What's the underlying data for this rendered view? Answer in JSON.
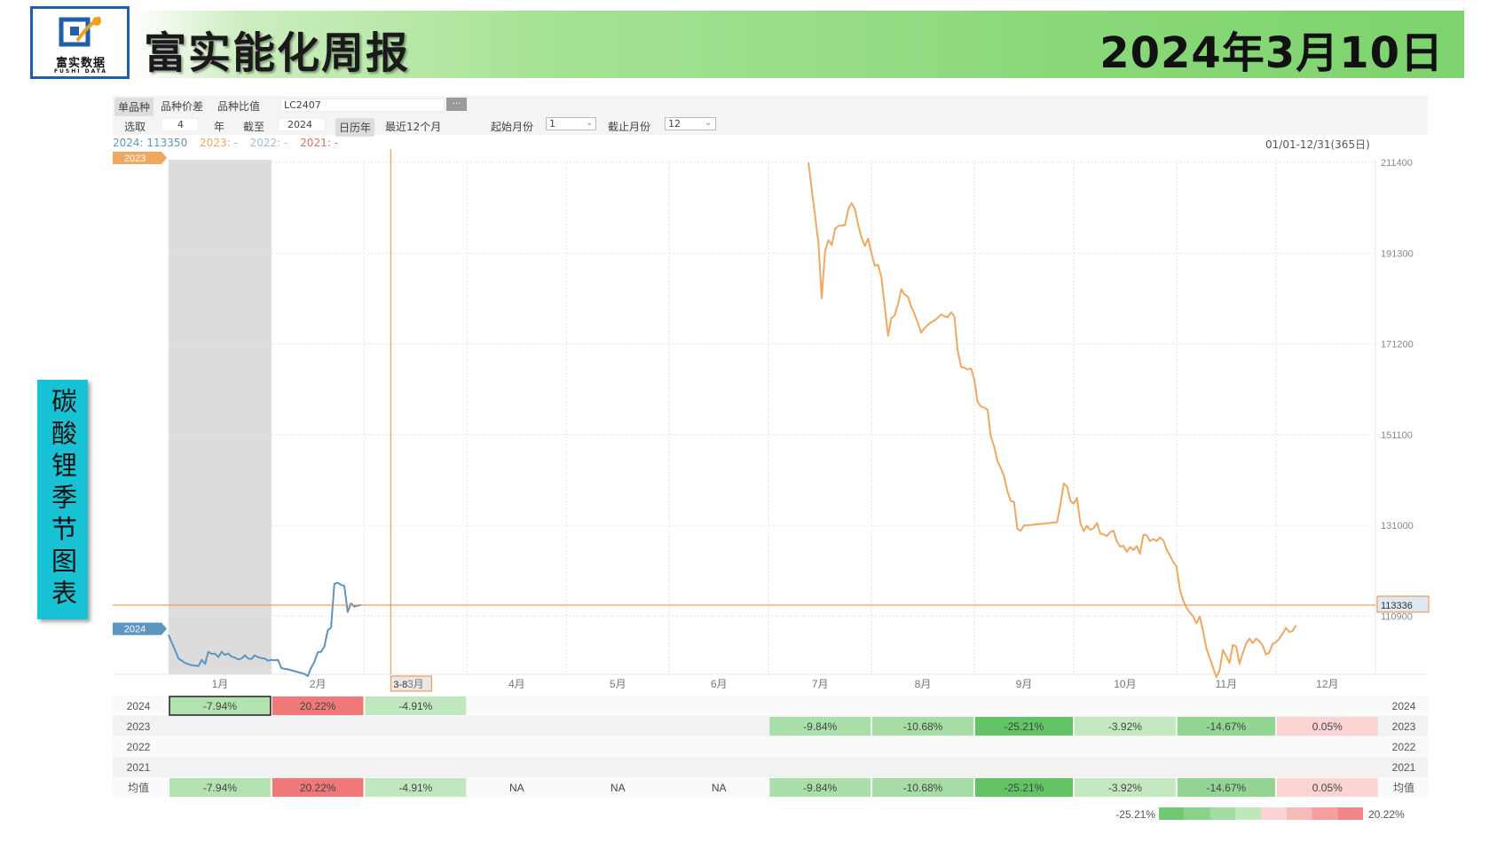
{
  "header": {
    "logo_text": "富实数据",
    "logo_sub": "FUSHI DATA",
    "title": "富实能化周报",
    "date": "2024年3月10日"
  },
  "side_label": "碳酸锂季节图表",
  "toolbar": {
    "tabs": [
      "单品种",
      "品种价差",
      "品种比值"
    ],
    "contract": "LC2407",
    "more_btn": "...",
    "select_label": "选取",
    "years_value": "4",
    "years_unit": "年",
    "until_label": "截至",
    "until_value": "2024",
    "mode_calendar": "日历年",
    "mode_recent": "最近12个月",
    "start_month_label": "起始月份",
    "start_month_value": "1",
    "end_month_label": "截止月份",
    "end_month_value": "12"
  },
  "legend_line": {
    "y2024": "2024: 113350",
    "y2023": "2023: -",
    "y2022": "2022: -",
    "y2021": "2021: -",
    "range": "01/01-12/31(365日)"
  },
  "colors": {
    "y2024": "#5b95c0",
    "y2023": "#f0a860",
    "y2022": "#9cc3de",
    "y2021": "#e46a6a",
    "crosshair": "#f08a3c",
    "shade": "#dcdcdc"
  },
  "chart_data": {
    "type": "line",
    "title": "",
    "x_unit": "day_of_year",
    "xlim": [
      1,
      365
    ],
    "ylim": [
      98000,
      212000
    ],
    "y_ticks": [
      "211400",
      "191300",
      "171200",
      "151100",
      "131000",
      "110900"
    ],
    "y_tick_values": [
      211400,
      191300,
      171200,
      151100,
      131000,
      110900
    ],
    "month_labels": [
      "1月",
      "2月",
      "3月",
      "4月",
      "5月",
      "6月",
      "7月",
      "8月",
      "9月",
      "10月",
      "11月",
      "12月"
    ],
    "month_start_days": [
      1,
      32,
      60,
      91,
      121,
      152,
      182,
      213,
      244,
      274,
      305,
      335
    ],
    "shaded_range": [
      1,
      32
    ],
    "crosshair": {
      "x_day": 68,
      "x_label": "3-8",
      "y_value": 113336,
      "y_label": "113336"
    },
    "series": [
      {
        "name": "2024",
        "color": "#5b95c0",
        "tag": "2024",
        "points": [
          [
            1,
            106700
          ],
          [
            2,
            105000
          ],
          [
            4,
            101500
          ],
          [
            6,
            100500
          ],
          [
            8,
            100000
          ],
          [
            10,
            99800
          ],
          [
            11,
            101200
          ],
          [
            12,
            100300
          ],
          [
            13,
            103000
          ],
          [
            14,
            102500
          ],
          [
            15,
            102600
          ],
          [
            16,
            101800
          ],
          [
            17,
            103000
          ],
          [
            18,
            102300
          ],
          [
            19,
            102600
          ],
          [
            20,
            101900
          ],
          [
            21,
            101700
          ],
          [
            22,
            101300
          ],
          [
            23,
            101500
          ],
          [
            24,
            102200
          ],
          [
            25,
            101500
          ],
          [
            26,
            101400
          ],
          [
            27,
            102200
          ],
          [
            28,
            101800
          ],
          [
            29,
            101600
          ],
          [
            30,
            101500
          ],
          [
            31,
            101000
          ],
          [
            32,
            101200
          ],
          [
            33,
            101100
          ],
          [
            34,
            101200
          ],
          [
            35,
            99400
          ],
          [
            36,
            99200
          ],
          [
            37,
            99100
          ],
          [
            38,
            98900
          ],
          [
            39,
            98700
          ],
          [
            40,
            98500
          ],
          [
            41,
            98300
          ],
          [
            42,
            98100
          ],
          [
            43,
            97600
          ],
          [
            44,
            99500
          ],
          [
            45,
            100800
          ],
          [
            46,
            102900
          ],
          [
            47,
            103000
          ],
          [
            48,
            104200
          ],
          [
            49,
            107700
          ],
          [
            50,
            108400
          ],
          [
            51,
            118000
          ],
          [
            52,
            118300
          ],
          [
            53,
            117800
          ],
          [
            54,
            117600
          ],
          [
            55,
            111800
          ],
          [
            56,
            113700
          ],
          [
            57,
            113000
          ],
          [
            58,
            113200
          ],
          [
            59,
            113350
          ]
        ]
      },
      {
        "name": "2023",
        "color": "#f0a860",
        "tag": "2023",
        "points": [
          [
            194,
            211300
          ],
          [
            197,
            193600
          ],
          [
            198,
            181300
          ],
          [
            199,
            191700
          ],
          [
            200,
            194200
          ],
          [
            201,
            193100
          ],
          [
            202,
            196700
          ],
          [
            203,
            197300
          ],
          [
            205,
            197500
          ],
          [
            206,
            201000
          ],
          [
            207,
            202400
          ],
          [
            208,
            201100
          ],
          [
            209,
            197600
          ],
          [
            210,
            194700
          ],
          [
            211,
            192900
          ],
          [
            212,
            194500
          ],
          [
            213,
            191200
          ],
          [
            214,
            188500
          ],
          [
            215,
            188700
          ],
          [
            216,
            185900
          ],
          [
            218,
            173000
          ],
          [
            219,
            176900
          ],
          [
            220,
            177500
          ],
          [
            221,
            180000
          ],
          [
            222,
            183300
          ],
          [
            223,
            182100
          ],
          [
            224,
            181700
          ],
          [
            225,
            179400
          ],
          [
            226,
            177800
          ],
          [
            227,
            175800
          ],
          [
            228,
            173700
          ],
          [
            229,
            174700
          ],
          [
            230,
            175400
          ],
          [
            231,
            176000
          ],
          [
            232,
            176400
          ],
          [
            233,
            177000
          ],
          [
            234,
            177700
          ],
          [
            235,
            177300
          ],
          [
            236,
            177100
          ],
          [
            237,
            178200
          ],
          [
            238,
            177300
          ],
          [
            239,
            169800
          ],
          [
            240,
            166100
          ],
          [
            241,
            165900
          ],
          [
            242,
            165500
          ],
          [
            243,
            165800
          ],
          [
            244,
            163400
          ],
          [
            245,
            158400
          ],
          [
            246,
            157300
          ],
          [
            247,
            157100
          ],
          [
            248,
            156600
          ],
          [
            249,
            150700
          ],
          [
            250,
            148500
          ],
          [
            251,
            145200
          ],
          [
            252,
            143700
          ],
          [
            253,
            141900
          ],
          [
            254,
            138500
          ],
          [
            255,
            136400
          ],
          [
            256,
            136200
          ],
          [
            257,
            130200
          ],
          [
            258,
            129800
          ],
          [
            259,
            131000
          ],
          [
            260,
            131000
          ],
          [
            269,
            131700
          ],
          [
            270,
            135700
          ],
          [
            271,
            140300
          ],
          [
            272,
            139600
          ],
          [
            273,
            136400
          ],
          [
            274,
            135800
          ],
          [
            275,
            137100
          ],
          [
            276,
            131500
          ],
          [
            277,
            129700
          ],
          [
            278,
            130900
          ],
          [
            279,
            130000
          ],
          [
            280,
            130400
          ],
          [
            281,
            131500
          ],
          [
            282,
            129200
          ],
          [
            283,
            129000
          ],
          [
            284,
            128600
          ],
          [
            285,
            129500
          ],
          [
            286,
            129800
          ],
          [
            287,
            127400
          ],
          [
            288,
            126300
          ],
          [
            289,
            126500
          ],
          [
            290,
            125100
          ],
          [
            291,
            126200
          ],
          [
            292,
            125500
          ],
          [
            293,
            126400
          ],
          [
            294,
            124700
          ],
          [
            295,
            128900
          ],
          [
            296,
            128800
          ],
          [
            297,
            127500
          ],
          [
            298,
            128000
          ],
          [
            299,
            127500
          ],
          [
            300,
            128300
          ],
          [
            301,
            127700
          ],
          [
            302,
            125700
          ],
          [
            303,
            124300
          ],
          [
            304,
            122900
          ],
          [
            305,
            121900
          ],
          [
            306,
            116800
          ],
          [
            307,
            114400
          ],
          [
            308,
            112800
          ],
          [
            309,
            111700
          ],
          [
            310,
            110900
          ],
          [
            311,
            109300
          ],
          [
            312,
            110800
          ],
          [
            313,
            107700
          ],
          [
            314,
            103700
          ],
          [
            315,
            101700
          ],
          [
            316,
            99600
          ],
          [
            317,
            97400
          ],
          [
            318,
            98900
          ],
          [
            319,
            103400
          ],
          [
            320,
            102000
          ],
          [
            321,
            100500
          ],
          [
            322,
            104500
          ],
          [
            323,
            104200
          ],
          [
            324,
            100300
          ],
          [
            325,
            102700
          ],
          [
            326,
            104800
          ],
          [
            327,
            105900
          ],
          [
            328,
            104900
          ],
          [
            329,
            105900
          ],
          [
            330,
            105400
          ],
          [
            331,
            104300
          ],
          [
            332,
            102400
          ],
          [
            333,
            102800
          ],
          [
            334,
            104800
          ],
          [
            335,
            105100
          ],
          [
            336,
            105900
          ],
          [
            337,
            107000
          ],
          [
            338,
            108300
          ],
          [
            339,
            107400
          ],
          [
            340,
            107600
          ],
          [
            341,
            108800
          ]
        ]
      },
      {
        "name": "2022",
        "color": "#9cc3de",
        "points": []
      },
      {
        "name": "2021",
        "color": "#e46a6a",
        "points": []
      }
    ]
  },
  "table": {
    "row_labels": [
      "2024",
      "2023",
      "2022",
      "2021",
      "均值"
    ],
    "rows": [
      [
        "-7.94%",
        "20.22%",
        "-4.91%",
        "",
        "",
        "",
        "",
        "",
        "",
        "",
        "",
        ""
      ],
      [
        "",
        "",
        "",
        "",
        "",
        "",
        "-9.84%",
        "-10.68%",
        "-25.21%",
        "-3.92%",
        "-14.67%",
        "0.05%"
      ],
      [
        "",
        "",
        "",
        "",
        "",
        "",
        "",
        "",
        "",
        "",
        "",
        ""
      ],
      [
        "",
        "",
        "",
        "",
        "",
        "",
        "",
        "",
        "",
        "",
        "",
        ""
      ],
      [
        "-7.94%",
        "20.22%",
        "-4.91%",
        "NA",
        "NA",
        "NA",
        "-9.84%",
        "-10.68%",
        "-25.21%",
        "-3.92%",
        "-14.67%",
        "0.05%"
      ]
    ]
  },
  "scale_legend": {
    "min_label": "-25.21%",
    "max_label": "20.22%",
    "min": -25.21,
    "max": 20.22
  }
}
